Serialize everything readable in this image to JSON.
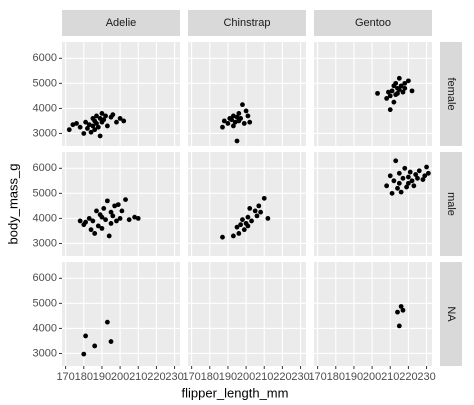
{
  "chart_data": {
    "type": "scatter",
    "x_label": "flipper_length_mm",
    "y_label": "body_mass_g",
    "facet_cols": [
      "Adelie",
      "Chinstrap",
      "Gentoo"
    ],
    "facet_rows": [
      "female",
      "male",
      "NA"
    ],
    "color": "#000000",
    "grid": true,
    "xlim": [
      168,
      233
    ],
    "xticks": [
      170,
      180,
      190,
      200,
      210,
      220,
      230
    ],
    "ylim": [
      2500,
      6650
    ],
    "yticks": [
      3000,
      4000,
      5000,
      6000
    ],
    "panels": [
      [
        {
          "x": [
            172,
            174,
            176,
            178,
            180,
            181,
            182,
            183,
            184,
            185,
            185,
            186,
            186,
            187,
            187,
            188,
            189,
            189,
            190,
            190,
            191,
            192,
            193,
            195,
            196,
            198,
            200,
            202
          ],
          "y": [
            3150,
            3350,
            3400,
            3250,
            3000,
            3450,
            3200,
            3350,
            3050,
            3600,
            3300,
            3150,
            3500,
            3400,
            3700,
            3250,
            3600,
            2900,
            3800,
            3450,
            3550,
            3700,
            3300,
            3650,
            3750,
            3450,
            3600,
            3500
          ]
        },
        {
          "x": [
            187,
            188,
            190,
            191,
            192,
            193,
            193,
            194,
            195,
            195,
            196,
            196,
            197,
            198,
            199,
            200,
            201,
            202
          ],
          "y": [
            3250,
            3500,
            3400,
            3600,
            3550,
            3300,
            3700,
            3450,
            2700,
            3650,
            3500,
            3800,
            3600,
            4150,
            3400,
            3900,
            3700,
            3450
          ]
        },
        {
          "x": [
            203,
            208,
            209,
            210,
            210,
            211,
            212,
            212,
            213,
            213,
            214,
            214,
            215,
            215,
            216,
            217,
            218,
            218,
            220,
            222
          ],
          "y": [
            4600,
            4400,
            4650,
            4500,
            3950,
            4700,
            4250,
            4900,
            4550,
            5000,
            4600,
            4800,
            4750,
            5200,
            4900,
            4650,
            5000,
            4800,
            5100,
            4700
          ]
        }
      ],
      [
        {
          "x": [
            178,
            180,
            181,
            183,
            184,
            185,
            186,
            187,
            188,
            189,
            190,
            190,
            191,
            192,
            193,
            194,
            195,
            195,
            196,
            197,
            198,
            199,
            200,
            201,
            203,
            205,
            208,
            210
          ],
          "y": [
            3900,
            3750,
            3850,
            4000,
            3550,
            3900,
            3400,
            4300,
            3700,
            4150,
            4050,
            3600,
            4400,
            3950,
            4700,
            3300,
            4250,
            3800,
            4100,
            4500,
            3900,
            4550,
            4000,
            4300,
            4750,
            3950,
            4050,
            4000
          ]
        },
        {
          "x": [
            187,
            193,
            195,
            196,
            197,
            198,
            199,
            200,
            201,
            201,
            202,
            203,
            205,
            206,
            207,
            208,
            210,
            212
          ],
          "y": [
            3250,
            3300,
            3650,
            3400,
            3750,
            3950,
            3550,
            3800,
            4050,
            3700,
            4400,
            3900,
            4300,
            4100,
            4500,
            4250,
            4800,
            4000
          ]
        },
        {
          "x": [
            208,
            210,
            211,
            212,
            213,
            214,
            215,
            215,
            216,
            217,
            218,
            219,
            220,
            220,
            221,
            222,
            223,
            224,
            225,
            226,
            228,
            229,
            230,
            231
          ],
          "y": [
            5300,
            5700,
            5000,
            5500,
            6300,
            5200,
            5800,
            5400,
            5050,
            5600,
            6000,
            5250,
            5650,
            5400,
            5850,
            5500,
            5300,
            5750,
            5600,
            5900,
            5550,
            5700,
            6050,
            5800
          ]
        }
      ],
      [
        {
          "x": [
            180,
            181,
            186,
            193,
            195
          ],
          "y": [
            2975,
            3700,
            3300,
            4250,
            3475
          ]
        },
        {
          "x": [],
          "y": []
        },
        {
          "x": [
            214,
            215,
            216,
            217
          ],
          "y": [
            4650,
            4100,
            4875,
            4725
          ]
        }
      ]
    ]
  }
}
